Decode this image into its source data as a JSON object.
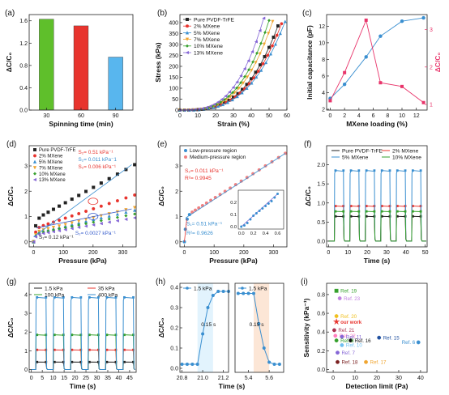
{
  "chart_data": [
    {
      "id": "a",
      "tag": "(a)",
      "type": "bar",
      "categories": [
        "30",
        "60",
        "90"
      ],
      "values": [
        1.63,
        1.51,
        0.95
      ],
      "colors": [
        "#5fbf2b",
        "#e8342e",
        "#58b6ee"
      ],
      "xlabel": "Spinning time (min)",
      "ylabel": "ΔC/C₀",
      "ylim": [
        0,
        1.6
      ],
      "yticks": [
        "0.0",
        "0.4",
        "0.8",
        "1.2",
        "1.6"
      ],
      "ytick_values": [
        0,
        0.4,
        0.8,
        1.2,
        1.6
      ]
    },
    {
      "id": "b",
      "tag": "(b)",
      "type": "line",
      "xlabel": "Strain (%)",
      "ylabel": "Stress (kPa)",
      "xlim": [
        0,
        60
      ],
      "ylim": [
        0,
        420
      ],
      "xticks": [
        "0",
        "10",
        "20",
        "30",
        "40",
        "50",
        "60"
      ],
      "xtick_values": [
        0,
        10,
        20,
        30,
        40,
        50,
        60
      ],
      "yticks": [
        "0",
        "50",
        "100",
        "150",
        "200",
        "250",
        "300",
        "350",
        "400"
      ],
      "ytick_values": [
        0,
        50,
        100,
        150,
        200,
        250,
        300,
        350,
        400
      ],
      "legend": "top-left",
      "series": [
        {
          "name": "Pure PVDF-TrFE",
          "color": "#222222",
          "marker": "square",
          "end_x": 55,
          "end_y": 385
        },
        {
          "name": "2% MXene",
          "color": "#e8342e",
          "marker": "circle",
          "end_x": 57,
          "end_y": 395
        },
        {
          "name": "5% MXene",
          "color": "#3a8fd0",
          "marker": "triangle",
          "end_x": 59,
          "end_y": 405
        },
        {
          "name": "7% MXene",
          "color": "#f0a530",
          "marker": "triangle-down",
          "end_x": 52,
          "end_y": 405
        },
        {
          "name": "10% MXene",
          "color": "#35a02c",
          "marker": "diamond",
          "end_x": 50,
          "end_y": 410
        },
        {
          "name": "13% MXene",
          "color": "#8566d6",
          "marker": "triangle-left",
          "end_x": 47,
          "end_y": 420
        }
      ]
    },
    {
      "id": "c",
      "tag": "(c)",
      "type": "line",
      "xlabel": "MXene loading (%)",
      "ylabel": "Initial capacitance (pF)",
      "ylabel_right": "ΔC/C₀",
      "xlim": [
        -0.5,
        13.5
      ],
      "ylim": [
        1.9,
        13.4
      ],
      "ylim_right": [
        0.85,
        3.4
      ],
      "xticks": [
        "0",
        "2",
        "4",
        "6",
        "8",
        "10",
        "12"
      ],
      "xtick_values": [
        0,
        2,
        4,
        6,
        8,
        10,
        12
      ],
      "yticks": [
        "2",
        "4",
        "6",
        "8",
        "10",
        "12"
      ],
      "ytick_values": [
        2,
        4,
        6,
        8,
        10,
        12
      ],
      "yticks_right": [
        "1",
        "2",
        "3"
      ],
      "ytick_values_right": [
        1,
        2,
        3
      ],
      "x": [
        0,
        2,
        5,
        7,
        10,
        13
      ],
      "series": [
        {
          "axis": "left",
          "color": "#3a8fd0",
          "values": [
            3.3,
            5.0,
            8.3,
            10.8,
            12.6,
            13.0
          ]
        },
        {
          "axis": "right",
          "color": "#e8346a",
          "values": [
            1.1,
            1.85,
            3.25,
            1.58,
            1.48,
            1.05
          ]
        }
      ]
    },
    {
      "id": "d",
      "tag": "(d)",
      "type": "scatter",
      "xlabel": "Pressure (kPa)",
      "ylabel": "ΔC/C₀",
      "xlim": [
        -15,
        345
      ],
      "ylim": [
        -0.2,
        3.8
      ],
      "xticks": [
        "0",
        "100",
        "200",
        "300"
      ],
      "xtick_values": [
        0,
        100,
        200,
        300
      ],
      "yticks": [
        "0",
        "1",
        "2",
        "3"
      ],
      "ytick_values": [
        0,
        1,
        2,
        3
      ],
      "legend": "top-left",
      "series": [
        {
          "name": "Pure PVDF-TrFE",
          "color": "#222222",
          "marker": "square",
          "end_y": 3.05
        },
        {
          "name": "2% MXene",
          "color": "#e8342e",
          "marker": "circle",
          "end_y": 1.85
        },
        {
          "name": "5% MXene",
          "color": "#3a8fd0",
          "marker": "triangle",
          "end_y": 1.25
        },
        {
          "name": "7% MXene",
          "color": "#f0a530",
          "marker": "triangle-down",
          "end_y": 1.35
        },
        {
          "name": "10% MXene",
          "color": "#35a02c",
          "marker": "diamond",
          "end_y": 1.1
        },
        {
          "name": "13% MXene",
          "color": "#8566d6",
          "marker": "triangle-left",
          "end_y": 0.95
        }
      ],
      "annotations": [
        {
          "text": "S₂= 0.51 kPa⁻¹",
          "color": "#e8342e"
        },
        {
          "text": "S₂= 0.011 kPa⁻1",
          "color": "#3a8fd0"
        },
        {
          "text": "S₂= 0.006 kPa⁻¹",
          "color": "#e8342e"
        },
        {
          "text": "S₁= 0.12 kPa⁻¹",
          "color": "#222222"
        },
        {
          "text": "S₂= 0.0027 kPa⁻¹",
          "color": "#3a5fcd"
        }
      ]
    },
    {
      "id": "e",
      "tag": "(e)",
      "type": "scatter",
      "xlabel": "Pressure (kPa)",
      "ylabel": "ΔC/C₀",
      "xlim": [
        -15,
        345
      ],
      "ylim": [
        -0.2,
        3.8
      ],
      "xticks": [
        "0",
        "100",
        "200",
        "300"
      ],
      "xtick_values": [
        0,
        100,
        200,
        300
      ],
      "yticks": [
        "0",
        "1",
        "2",
        "3"
      ],
      "ytick_values": [
        0,
        1,
        2,
        3
      ],
      "legend": "top-left",
      "series": [
        {
          "name": "Low-pressure region",
          "color": "#3a8fd0"
        },
        {
          "name": "Medium-pressure region",
          "color": "#f08080"
        }
      ],
      "annotations": [
        {
          "text": "S₂= 0.011 kPa⁻¹",
          "color": "#e8342e"
        },
        {
          "text": "R²= 0.9945",
          "color": "#e8342e"
        },
        {
          "text": "S₁= 0.51 kPa⁻¹",
          "color": "#3a8fd0"
        },
        {
          "text": "R²= 0.9626",
          "color": "#3a8fd0"
        }
      ],
      "inset": {
        "xlim": [
          -0.05,
          0.7
        ],
        "ylim": [
          -0.02,
          0.3
        ],
        "xticks": [
          "0.0",
          "0.2",
          "0.4",
          "0.6"
        ],
        "xtick_values": [
          0,
          0.2,
          0.4,
          0.6
        ],
        "yticks": [
          "0.0",
          "0.1",
          "0.2"
        ],
        "ytick_values": [
          0,
          0.1,
          0.2
        ],
        "x": [
          0.0,
          0.05,
          0.1,
          0.15,
          0.2,
          0.25,
          0.3,
          0.35,
          0.4,
          0.45,
          0.5,
          0.55,
          0.6
        ],
        "y": [
          0.0,
          0.01,
          0.03,
          0.06,
          0.09,
          0.11,
          0.13,
          0.15,
          0.17,
          0.19,
          0.21,
          0.24,
          0.27
        ]
      }
    },
    {
      "id": "f",
      "tag": "(f)",
      "type": "line",
      "xlabel": "Time (s)",
      "ylabel": "ΔC/C₀",
      "xlim": [
        -1,
        51
      ],
      "ylim": [
        -0.15,
        2.5
      ],
      "xticks": [
        "0",
        "10",
        "20",
        "30",
        "40",
        "50"
      ],
      "xtick_values": [
        0,
        10,
        20,
        30,
        40,
        50
      ],
      "yticks": [
        "0.0",
        "0.5",
        "1.0",
        "1.5",
        "2.0"
      ],
      "ytick_values": [
        0,
        0.5,
        1.0,
        1.5,
        2.0
      ],
      "legend": "top",
      "pulses": [
        [
          3,
          8
        ],
        [
          11,
          16
        ],
        [
          19,
          24
        ],
        [
          27,
          32
        ],
        [
          35,
          40
        ],
        [
          43,
          48
        ]
      ],
      "series": [
        {
          "name": "Pure PVDF-TrFE",
          "color": "#222222",
          "values": [
            0.65
          ]
        },
        {
          "name": "2% MXene",
          "color": "#e8342e",
          "values": [
            0.92
          ]
        },
        {
          "name": "5% MXene",
          "color": "#3a8fd0",
          "values": [
            1.85
          ]
        },
        {
          "name": "10% MXene",
          "color": "#35a02c",
          "values": [
            0.78
          ]
        }
      ]
    },
    {
      "id": "g",
      "tag": "(g)",
      "type": "line",
      "xlabel": "Time (s)",
      "ylabel": "ΔC/C₀",
      "xlim": [
        -1,
        48
      ],
      "ylim": [
        -0.15,
        4.6
      ],
      "xticks": [
        "0",
        "5",
        "10",
        "15",
        "20",
        "25",
        "30",
        "35",
        "40",
        "45"
      ],
      "xtick_values": [
        0,
        5,
        10,
        15,
        20,
        25,
        30,
        35,
        40,
        45
      ],
      "yticks": [
        "0",
        "1",
        "2",
        "3",
        "4"
      ],
      "ytick_values": [
        0,
        1,
        2,
        3,
        4
      ],
      "legend": "top",
      "pulses": [
        [
          2,
          7
        ],
        [
          10,
          15
        ],
        [
          18,
          23
        ],
        [
          26,
          31
        ],
        [
          34,
          39
        ],
        [
          42,
          47
        ]
      ],
      "series": [
        {
          "name": "1.5 kPa",
          "color": "#222222",
          "values": [
            0.4
          ]
        },
        {
          "name": "35 kPa",
          "color": "#e8342e",
          "values": [
            1.05
          ]
        },
        {
          "name": "100 kPa",
          "color": "#35a02c",
          "values": [
            1.85
          ]
        },
        {
          "name": "400 kPa",
          "color": "#3a8fd0",
          "values": [
            3.85
          ]
        }
      ]
    },
    {
      "id": "h1",
      "tag": "(h)",
      "type": "line",
      "xlabel": "",
      "ylabel": "ΔC/C₀",
      "xlim": [
        20.78,
        21.25
      ],
      "ylim": [
        -0.02,
        0.42
      ],
      "xticks": [
        "20.8",
        "21.0",
        "21.2"
      ],
      "xtick_values": [
        20.8,
        21.0,
        21.2
      ],
      "yticks": [
        "0.0",
        "0.1",
        "0.2",
        "0.3",
        "0.4"
      ],
      "ytick_values": [
        0,
        0.1,
        0.2,
        0.3,
        0.4
      ],
      "legend": "top",
      "series": [
        {
          "name": "1.5 kPa",
          "color": "#3a8fd0"
        }
      ],
      "x": [
        20.8,
        20.85,
        20.9,
        20.95,
        21.0,
        21.05,
        21.1,
        21.15,
        21.2,
        21.25
      ],
      "y": [
        0.02,
        0.02,
        0.02,
        0.02,
        0.17,
        0.3,
        0.36,
        0.38,
        0.38,
        0.38
      ],
      "annotations": [
        {
          "text": "0.15 s",
          "color": "#222222"
        }
      ]
    },
    {
      "id": "h2",
      "type": "line",
      "xlabel": "",
      "ylabel": "",
      "xlim": [
        5.27,
        5.74
      ],
      "ylim": [
        -0.02,
        0.42
      ],
      "xticks": [
        "5.4",
        "5.6"
      ],
      "xtick_values": [
        5.4,
        5.6
      ],
      "yticks": [],
      "ytick_values": [],
      "legend": "top",
      "series": [
        {
          "name": "1.5 kPa",
          "color": "#3a8fd0"
        }
      ],
      "x": [
        5.3,
        5.35,
        5.4,
        5.45,
        5.5,
        5.55,
        5.6,
        5.65,
        5.7
      ],
      "y": [
        0.37,
        0.37,
        0.37,
        0.37,
        0.22,
        0.1,
        0.03,
        0.02,
        0.02
      ],
      "annotations": [
        {
          "text": "0.15 s",
          "color": "#222222"
        }
      ]
    },
    {
      "id": "i",
      "tag": "(i)",
      "type": "scatter",
      "xlabel": "Detection limit (Pa)",
      "ylabel": "Sensitivity (kPa⁻¹)",
      "xlim": [
        -3,
        43
      ],
      "ylim": [
        -0.03,
        0.92
      ],
      "xticks": [
        "0",
        "10",
        "20",
        "30",
        "40"
      ],
      "xtick_values": [
        0,
        10,
        20,
        30,
        40
      ],
      "yticks": [
        "0.0",
        "0.2",
        "0.4",
        "0.6",
        "0.8"
      ],
      "ytick_values": [
        0,
        0.2,
        0.4,
        0.6,
        0.8
      ],
      "points": [
        {
          "label": "Ref. 19",
          "x": 1.5,
          "y": 0.84,
          "color": "#35a02c",
          "marker": "square"
        },
        {
          "label": "Ref. 23",
          "x": 3,
          "y": 0.76,
          "color": "#c080e0",
          "marker": "circle"
        },
        {
          "label": "Ref. 20",
          "x": 1.5,
          "y": 0.57,
          "color": "#f0c020",
          "marker": "circle"
        },
        {
          "label": "our work",
          "x": 1.5,
          "y": 0.51,
          "color": "#e8342e",
          "marker": "star"
        },
        {
          "label": "Ref. 21",
          "x": 0.5,
          "y": 0.42,
          "color": "#aa3050",
          "marker": "circle"
        },
        {
          "label": "Ref. 22",
          "x": 1,
          "y": 0.36,
          "color": "#ff80c0",
          "marker": "circle"
        },
        {
          "label": "Ref. 11",
          "x": 4,
          "y": 0.35,
          "color": "#8566d6",
          "marker": "circle"
        },
        {
          "label": "Ref. 15",
          "x": 21,
          "y": 0.34,
          "color": "#2050a0",
          "marker": "circle"
        },
        {
          "label": "Ref. 6",
          "x": 39,
          "y": 0.29,
          "color": "#3a8fd0",
          "marker": "circle"
        },
        {
          "label": "Ref. 16",
          "x": 8,
          "y": 0.31,
          "color": "#111111",
          "marker": "circle"
        },
        {
          "label": "Ref. 8",
          "x": 1.5,
          "y": 0.31,
          "color": "#35a02c",
          "marker": "circle"
        },
        {
          "label": "Ref. 10",
          "x": 4,
          "y": 0.26,
          "color": "#70c0f0",
          "marker": "circle"
        },
        {
          "label": "Ref. 7",
          "x": 2,
          "y": 0.18,
          "color": "#8566d6",
          "marker": "circle"
        },
        {
          "label": "Ref. 17",
          "x": 15,
          "y": 0.08,
          "color": "#f0a530",
          "marker": "circle"
        },
        {
          "label": "Ref. 18",
          "x": 2,
          "y": 0.08,
          "color": "#7a2020",
          "marker": "circle"
        }
      ]
    }
  ]
}
